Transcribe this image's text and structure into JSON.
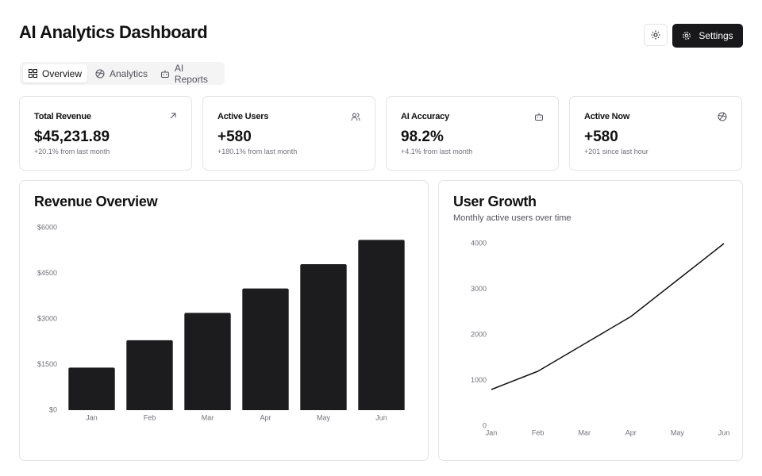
{
  "header": {
    "title": "AI Analytics Dashboard",
    "settings": "Settings"
  },
  "tabs": [
    "Overview",
    "Analytics",
    "AI Reports"
  ],
  "cards": [
    {
      "label": "Total Revenue",
      "value": "$45,231.89",
      "note": "+20.1% from last month"
    },
    {
      "label": "Active Users",
      "value": "+580",
      "note": "+180.1% from last month"
    },
    {
      "label": "AI Accuracy",
      "value": "98.2%",
      "note": "+4.1% from last month"
    },
    {
      "label": "Active Now",
      "value": "+580",
      "note": "+201 since last hour"
    }
  ],
  "chart_data": [
    {
      "type": "bar",
      "title": "Revenue Overview",
      "categories": [
        "Jan",
        "Feb",
        "Mar",
        "Apr",
        "May",
        "Jun"
      ],
      "values": [
        1400,
        2300,
        3200,
        4000,
        4800,
        5600
      ],
      "color": "#1c1c1e",
      "ylim": [
        0,
        6000
      ],
      "yticks": [
        {
          "value": 0,
          "label": "$0"
        },
        {
          "value": 1500,
          "label": "$1500"
        },
        {
          "value": 3000,
          "label": "$3000"
        },
        {
          "value": 4500,
          "label": "$4500"
        },
        {
          "value": 6000,
          "label": "$6000"
        }
      ],
      "grid": false
    },
    {
      "type": "line",
      "title": "User Growth",
      "subtitle": "Monthly active users over time",
      "categories": [
        "Jan",
        "Feb",
        "Mar",
        "Apr",
        "May",
        "Jun"
      ],
      "values": [
        800,
        1200,
        1800,
        2400,
        3200,
        4000
      ],
      "color": "#111111",
      "ylim": [
        0,
        4000
      ],
      "yticks": [
        0,
        1000,
        2000,
        3000,
        4000
      ],
      "grid": false
    }
  ]
}
